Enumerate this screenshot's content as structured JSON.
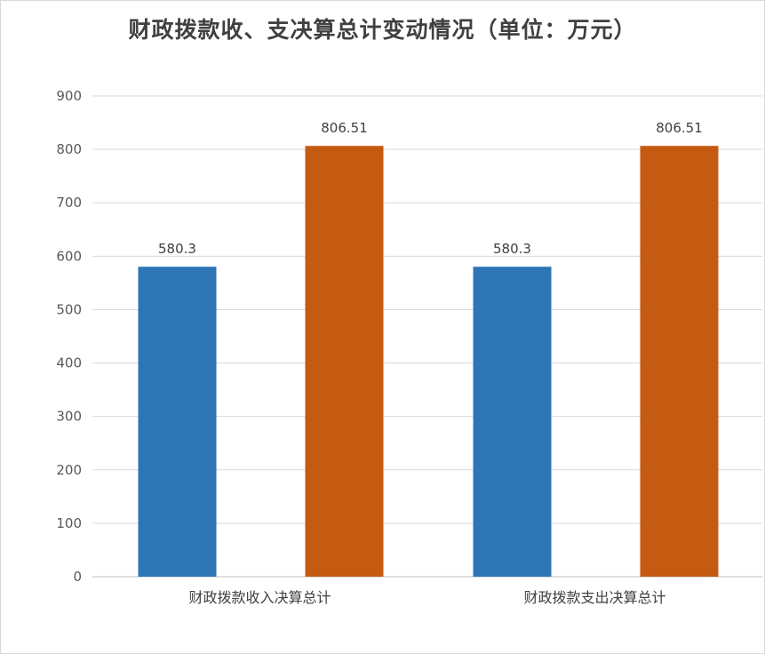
{
  "chart_data": {
    "type": "bar",
    "title": "财政拨款收、支决算总计变动情况（单位：万元）",
    "categories": [
      "财政拨款收入决算总计",
      "财政拨款支出决算总计"
    ],
    "series": [
      {
        "color": "#2e75b6",
        "values": [
          580.3,
          580.3
        ]
      },
      {
        "color": "#c55a11",
        "values": [
          806.51,
          806.51
        ]
      }
    ],
    "data_labels": [
      [
        "580.3",
        "580.3"
      ],
      [
        "806.51",
        "806.51"
      ]
    ],
    "ylim": [
      0,
      900
    ],
    "yticks": [
      0,
      100,
      200,
      300,
      400,
      500,
      600,
      700,
      800,
      900
    ],
    "grid": true,
    "legend": "none"
  }
}
